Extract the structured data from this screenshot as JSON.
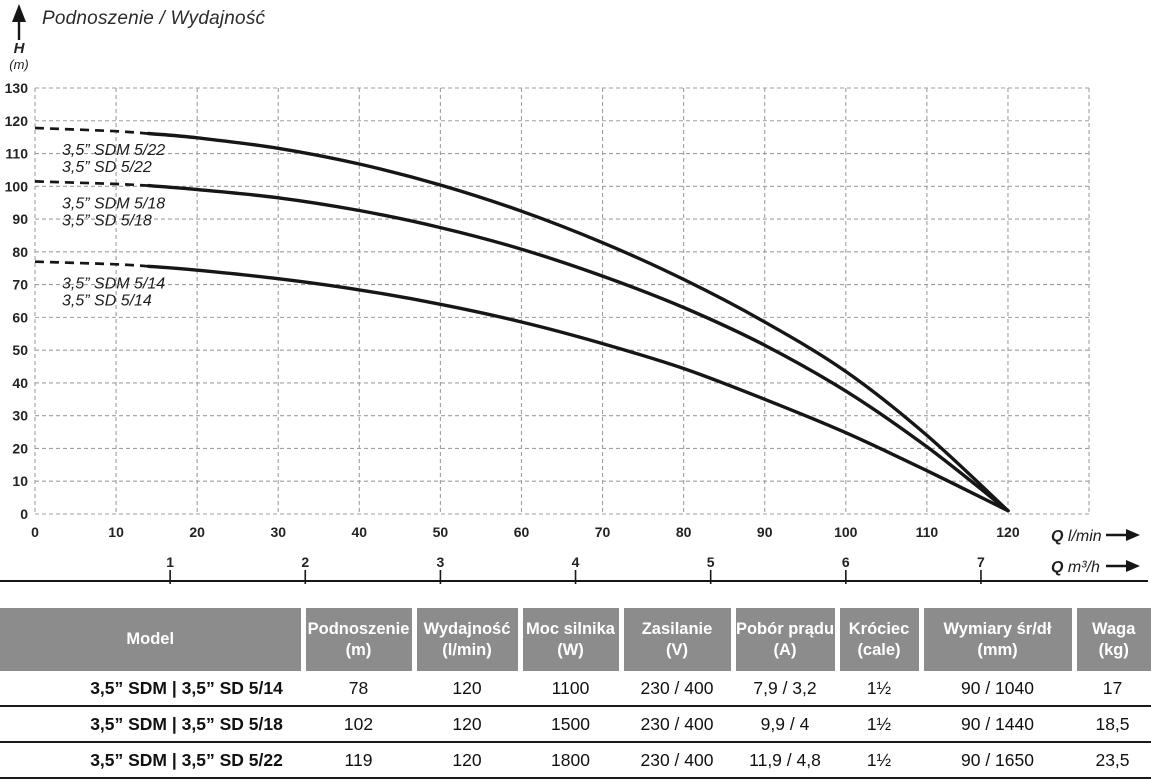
{
  "page_title": "Podnoszenie / Wydajność",
  "chart_data": {
    "type": "line",
    "title": "Podnoszenie / Wydajność",
    "grid": "dashed",
    "y_axis": {
      "symbol": "H",
      "unit": "(m)",
      "range": [
        0,
        130
      ],
      "ticks": [
        0,
        10,
        20,
        30,
        40,
        50,
        60,
        70,
        80,
        90,
        100,
        110,
        120,
        130
      ]
    },
    "x_axis": {
      "title_symbol": "Q",
      "title_unit": "l/min",
      "range": [
        0,
        120
      ],
      "grid_max": 130,
      "ticks": [
        0,
        10,
        20,
        30,
        40,
        50,
        60,
        70,
        80,
        90,
        100,
        110,
        120
      ]
    },
    "x2_axis": {
      "title_symbol": "Q",
      "title_unit": "m³/h",
      "ticks": [
        1,
        2,
        3,
        4,
        5,
        6,
        7
      ],
      "lpm_per_unit": 16.667
    },
    "dashed_segment_end_q": 14,
    "series": [
      {
        "label_lines": [
          "3,5” SDM 5/22",
          "3,5” SD 5/22"
        ],
        "points": [
          [
            0,
            117.8
          ],
          [
            10,
            116.8
          ],
          [
            14,
            116.1
          ],
          [
            20,
            114.8
          ],
          [
            30,
            111.6
          ],
          [
            40,
            106.8
          ],
          [
            50,
            100.4
          ],
          [
            60,
            92.4
          ],
          [
            70,
            82.8
          ],
          [
            80,
            71.6
          ],
          [
            90,
            58.6
          ],
          [
            100,
            43.5
          ],
          [
            110,
            24
          ],
          [
            120,
            1
          ]
        ]
      },
      {
        "label_lines": [
          "3,5” SDM 5/18",
          "3,5” SD 5/18"
        ],
        "points": [
          [
            0,
            101.5
          ],
          [
            10,
            100.7
          ],
          [
            14,
            100.2
          ],
          [
            20,
            99
          ],
          [
            30,
            96.5
          ],
          [
            40,
            92.6
          ],
          [
            50,
            87.4
          ],
          [
            60,
            80.8
          ],
          [
            70,
            72.6
          ],
          [
            80,
            63
          ],
          [
            90,
            51.5
          ],
          [
            100,
            37.5
          ],
          [
            110,
            20.5
          ],
          [
            120,
            1
          ]
        ]
      },
      {
        "label_lines": [
          "3,5” SDM 5/14",
          "3,5” SD 5/14"
        ],
        "points": [
          [
            0,
            77
          ],
          [
            10,
            76.2
          ],
          [
            14,
            75.6
          ],
          [
            20,
            74.4
          ],
          [
            30,
            71.8
          ],
          [
            40,
            68.4
          ],
          [
            50,
            64
          ],
          [
            60,
            58.6
          ],
          [
            70,
            52
          ],
          [
            80,
            44.4
          ],
          [
            90,
            35
          ],
          [
            100,
            24.8
          ],
          [
            110,
            13.2
          ],
          [
            120,
            1
          ]
        ]
      }
    ],
    "colors": {
      "curve": "#161616",
      "grid": "#9f9f9f",
      "text": "#232323"
    }
  },
  "table": {
    "header_bg": "#8c8c8c",
    "columns": [
      {
        "name": "Model",
        "unit": ""
      },
      {
        "name": "Podnoszenie",
        "unit": "(m)"
      },
      {
        "name": "Wydajność",
        "unit": "(l/min)"
      },
      {
        "name": "Moc silnika",
        "unit": "(W)"
      },
      {
        "name": "Zasilanie",
        "unit": "(V)"
      },
      {
        "name": "Pobór prądu",
        "unit": "(A)"
      },
      {
        "name": "Króciec",
        "unit": "(cale)"
      },
      {
        "name": "Wymiary śr/dł",
        "unit": "(mm)"
      },
      {
        "name": "Waga",
        "unit": "(kg)"
      }
    ],
    "rows": [
      [
        "3,5” SDM | 3,5” SD 5/14",
        "78",
        "120",
        "1100",
        "230 / 400",
        "7,9 / 3,2",
        "1½",
        "90 / 1040",
        "17"
      ],
      [
        "3,5” SDM | 3,5” SD 5/18",
        "102",
        "120",
        "1500",
        "230 / 400",
        "9,9 / 4",
        "1½",
        "90 / 1440",
        "18,5"
      ],
      [
        "3,5” SDM | 3,5” SD 5/22",
        "119",
        "120",
        "1800",
        "230 / 400",
        "11,9 / 4,8",
        "1½",
        "90 / 1650",
        "23,5"
      ]
    ]
  }
}
